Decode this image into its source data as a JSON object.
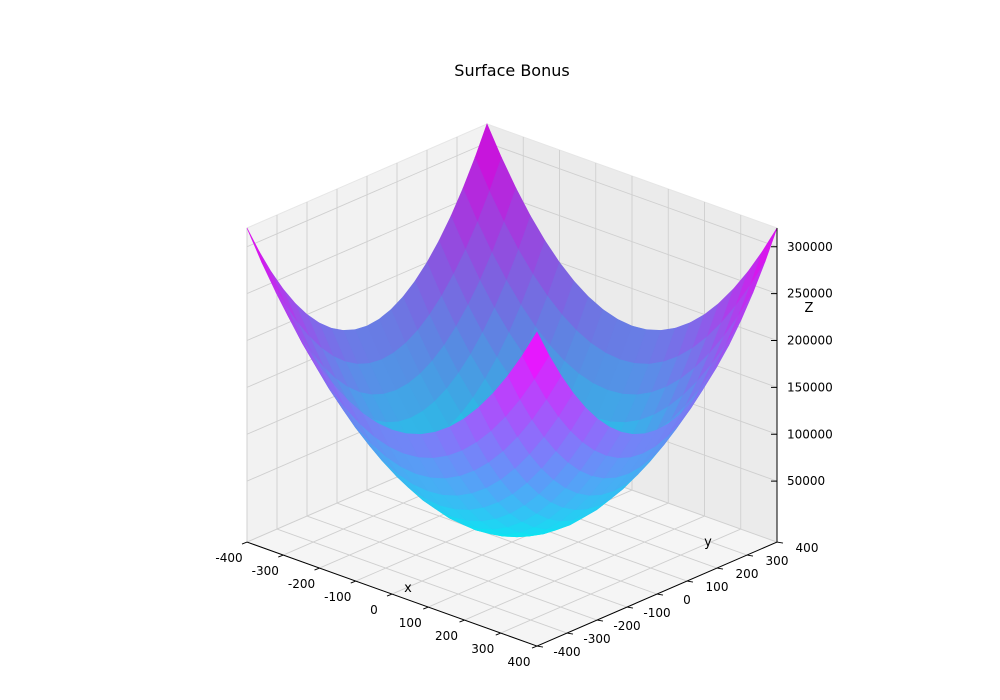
{
  "chart_data": {
    "type": "surface",
    "title": "Surface Bonus",
    "xlabel": "x",
    "ylabel": "y",
    "zlabel": "Z",
    "function": "z = x^2 + y^2",
    "x_range": [
      -400,
      400
    ],
    "y_range": [
      -400,
      400
    ],
    "z_range": [
      0,
      320000
    ],
    "grid_steps": 20,
    "x_ticks": [
      -400,
      -300,
      -200,
      -100,
      0,
      100,
      200,
      300,
      400
    ],
    "y_ticks": [
      -400,
      -300,
      -200,
      -100,
      0,
      100,
      200,
      300,
      400
    ],
    "z_ticks": [
      50000,
      100000,
      150000,
      200000,
      250000,
      300000
    ],
    "colormap": "cool",
    "colormap_low": "#00ffff",
    "colormap_high": "#ff00ff",
    "grid": true
  }
}
